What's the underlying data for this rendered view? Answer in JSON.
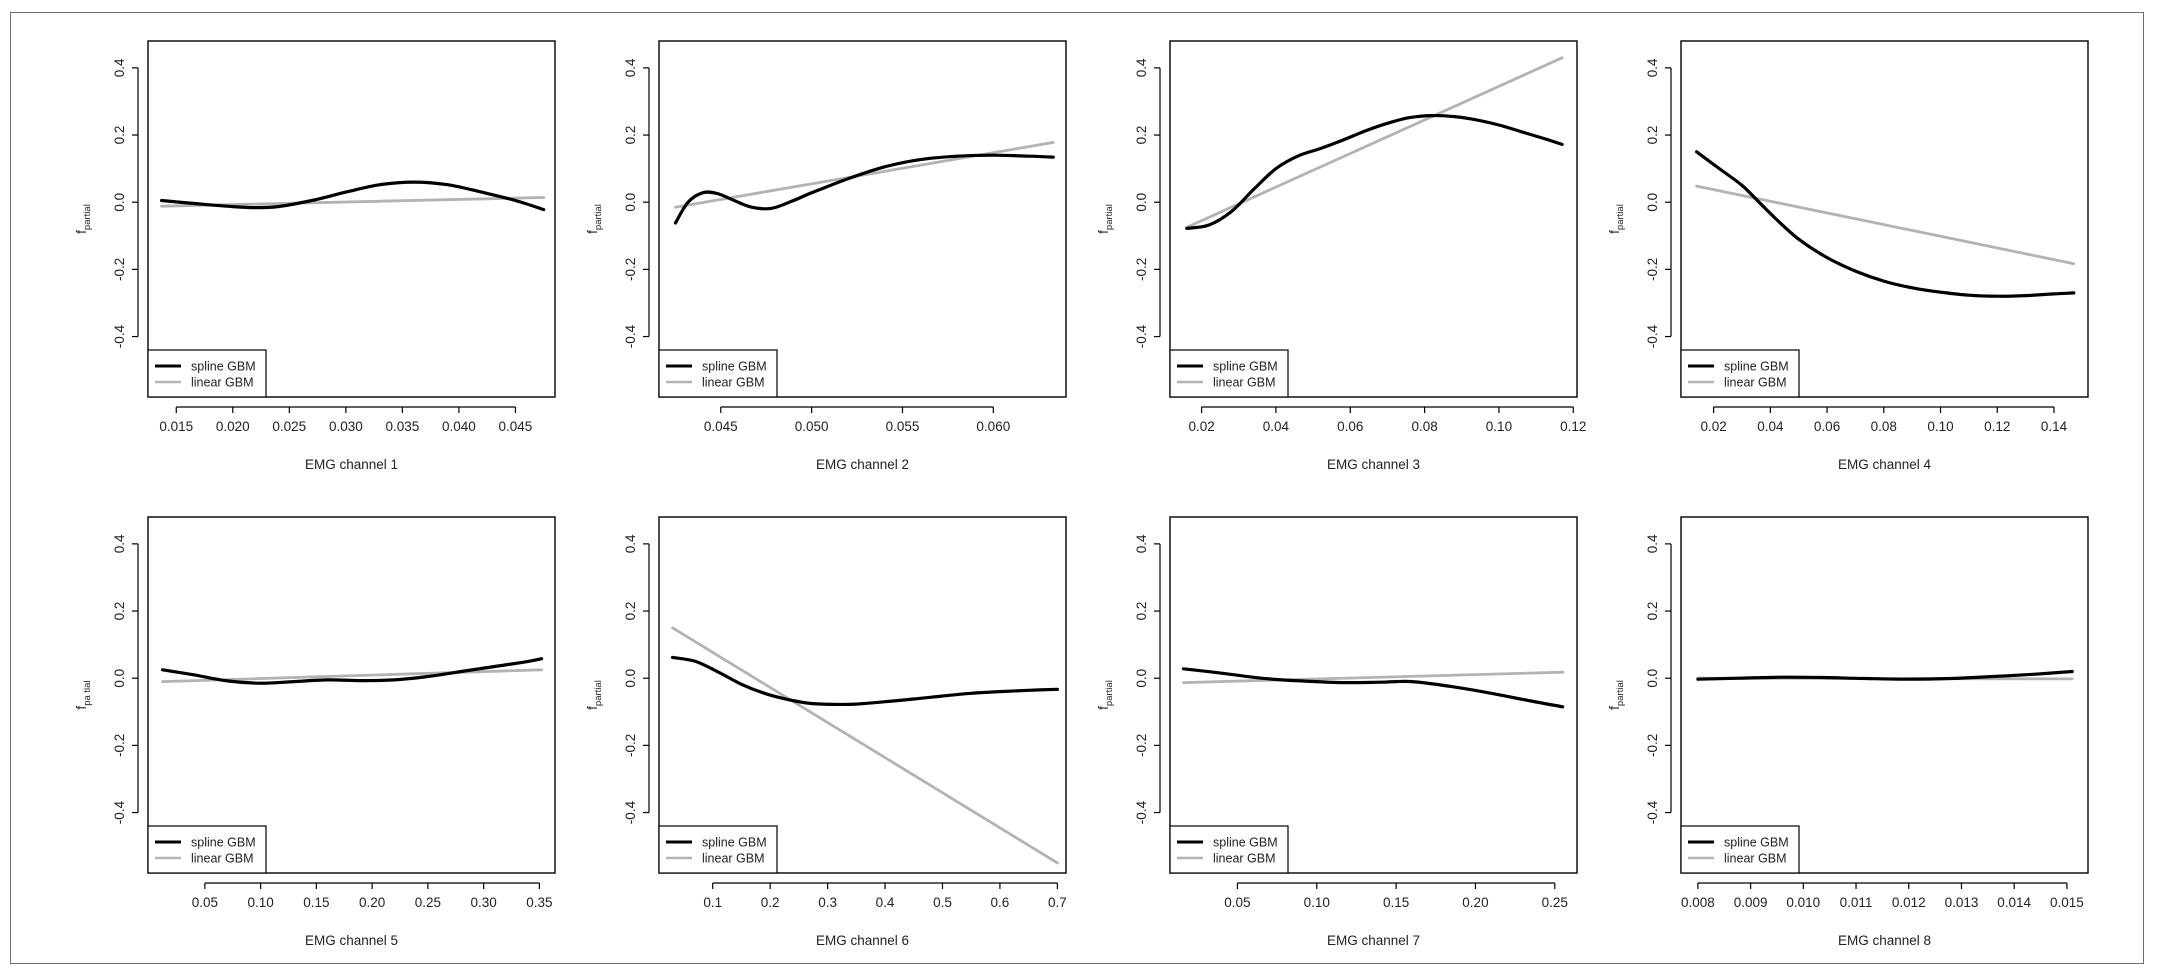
{
  "colors": {
    "spline": "#000000",
    "linear": "#b3b3b3",
    "frame": "#000000"
  },
  "chart_data": [
    {
      "type": "line",
      "xlabel": "EMG channel  1",
      "ylabel": "f",
      "ylabel_sub": "partial",
      "xlim": [
        0.0125,
        0.0485
      ],
      "ylim": [
        -0.58,
        0.48
      ],
      "x_ticks": [
        0.015,
        0.02,
        0.025,
        0.03,
        0.035,
        0.04,
        0.045
      ],
      "x_tick_labels": [
        "0.015",
        "0.020",
        "0.025",
        "0.030",
        "0.035",
        "0.040",
        "0.045"
      ],
      "y_ticks": [
        -0.4,
        -0.2,
        0.0,
        0.2,
        0.4
      ],
      "y_tick_labels": [
        "-0.4",
        "-0.2",
        "0.0",
        "0.2",
        "0.4"
      ],
      "legend": [
        "spline GBM",
        "linear GBM"
      ],
      "series": [
        {
          "name": "spline GBM",
          "x": [
            0.0137,
            0.017,
            0.02,
            0.022,
            0.024,
            0.027,
            0.03,
            0.033,
            0.036,
            0.039,
            0.042,
            0.045,
            0.0475
          ],
          "y": [
            0.005,
            -0.005,
            -0.013,
            -0.016,
            -0.013,
            0.005,
            0.03,
            0.052,
            0.06,
            0.052,
            0.03,
            0.005,
            -0.022
          ]
        },
        {
          "name": "linear GBM",
          "x": [
            0.0137,
            0.0475
          ],
          "y": [
            -0.012,
            0.014
          ]
        }
      ]
    },
    {
      "type": "line",
      "xlabel": "EMG channel  2",
      "ylabel": "f",
      "ylabel_sub": "partial",
      "xlim": [
        0.0416,
        0.064
      ],
      "ylim": [
        -0.58,
        0.48
      ],
      "x_ticks": [
        0.045,
        0.05,
        0.055,
        0.06
      ],
      "x_tick_labels": [
        "0.045",
        "0.050",
        "0.055",
        "0.060"
      ],
      "y_ticks": [
        -0.4,
        -0.2,
        0.0,
        0.2,
        0.4
      ],
      "y_tick_labels": [
        "-0.4",
        "-0.2",
        "0.0",
        "0.2",
        "0.4"
      ],
      "legend": [
        "spline GBM",
        "linear GBM"
      ],
      "series": [
        {
          "name": "spline GBM",
          "x": [
            0.0425,
            0.0432,
            0.044,
            0.0448,
            0.0457,
            0.0467,
            0.0478,
            0.049,
            0.05,
            0.052,
            0.054,
            0.056,
            0.058,
            0.06,
            0.062,
            0.0633
          ],
          "y": [
            -0.062,
            0.0,
            0.028,
            0.026,
            0.006,
            -0.015,
            -0.018,
            0.005,
            0.028,
            0.07,
            0.105,
            0.127,
            0.137,
            0.14,
            0.137,
            0.134
          ]
        },
        {
          "name": "linear GBM",
          "x": [
            0.0425,
            0.0633
          ],
          "y": [
            -0.015,
            0.178
          ]
        }
      ]
    },
    {
      "type": "line",
      "xlabel": "EMG channel  3",
      "ylabel": "f",
      "ylabel_sub": "partial",
      "xlim": [
        0.0115,
        0.121
      ],
      "ylim": [
        -0.58,
        0.48
      ],
      "x_ticks": [
        0.02,
        0.04,
        0.06,
        0.08,
        0.1,
        0.12
      ],
      "x_tick_labels": [
        "0.02",
        "0.04",
        "0.06",
        "0.08",
        "0.10",
        "0.12"
      ],
      "y_ticks": [
        -0.4,
        -0.2,
        0.0,
        0.2,
        0.4
      ],
      "y_tick_labels": [
        "-0.4",
        "-0.2",
        "0.0",
        "0.2",
        "0.4"
      ],
      "legend": [
        "spline GBM",
        "linear GBM"
      ],
      "series": [
        {
          "name": "spline GBM",
          "x": [
            0.016,
            0.022,
            0.028,
            0.034,
            0.04,
            0.046,
            0.052,
            0.058,
            0.064,
            0.07,
            0.076,
            0.082,
            0.088,
            0.094,
            0.1,
            0.106,
            0.112,
            0.117
          ],
          "y": [
            -0.078,
            -0.068,
            -0.028,
            0.038,
            0.1,
            0.138,
            0.16,
            0.185,
            0.212,
            0.235,
            0.252,
            0.258,
            0.255,
            0.245,
            0.23,
            0.21,
            0.19,
            0.172
          ]
        },
        {
          "name": "linear GBM",
          "x": [
            0.016,
            0.117
          ],
          "y": [
            -0.075,
            0.43
          ]
        }
      ]
    },
    {
      "type": "line",
      "xlabel": "EMG channel  4",
      "ylabel": "f",
      "ylabel_sub": "partial",
      "xlim": [
        0.0085,
        0.152
      ],
      "ylim": [
        -0.58,
        0.48
      ],
      "x_ticks": [
        0.02,
        0.04,
        0.06,
        0.08,
        0.1,
        0.12,
        0.14
      ],
      "x_tick_labels": [
        "0.02",
        "0.04",
        "0.06",
        "0.08",
        "0.10",
        "0.12",
        "0.14"
      ],
      "y_ticks": [
        -0.4,
        -0.2,
        0.0,
        0.2,
        0.4
      ],
      "y_tick_labels": [
        "-0.4",
        "-0.2",
        "0.0",
        "0.2",
        "0.4"
      ],
      "legend": [
        "spline GBM",
        "linear GBM"
      ],
      "series": [
        {
          "name": "spline GBM",
          "x": [
            0.014,
            0.022,
            0.03,
            0.036,
            0.042,
            0.05,
            0.06,
            0.07,
            0.08,
            0.09,
            0.1,
            0.11,
            0.12,
            0.13,
            0.14,
            0.147
          ],
          "y": [
            0.15,
            0.1,
            0.05,
            0.0,
            -0.05,
            -0.11,
            -0.165,
            -0.205,
            -0.235,
            -0.255,
            -0.268,
            -0.277,
            -0.28,
            -0.278,
            -0.273,
            -0.27
          ]
        },
        {
          "name": "linear GBM",
          "x": [
            0.014,
            0.147
          ],
          "y": [
            0.048,
            -0.183
          ]
        }
      ]
    },
    {
      "type": "line",
      "xlabel": "EMG channel  5",
      "ylabel": "f",
      "ylabel_sub": "pa tial",
      "xlim": [
        -0.001,
        0.364
      ],
      "ylim": [
        -0.58,
        0.48
      ],
      "x_ticks": [
        0.05,
        0.1,
        0.15,
        0.2,
        0.25,
        0.3,
        0.35
      ],
      "x_tick_labels": [
        "0.05",
        "0.10",
        "0.15",
        "0.20",
        "0.25",
        "0.30",
        "0.35"
      ],
      "y_ticks": [
        -0.4,
        -0.2,
        0.0,
        0.2,
        0.4
      ],
      "y_tick_labels": [
        "-0.4",
        "-0.2",
        "0.0",
        "0.2",
        "0.4"
      ],
      "legend": [
        "spline GBM",
        "linear GBM"
      ],
      "series": [
        {
          "name": "spline GBM",
          "x": [
            0.012,
            0.04,
            0.07,
            0.1,
            0.13,
            0.16,
            0.19,
            0.22,
            0.25,
            0.28,
            0.31,
            0.34,
            0.352
          ],
          "y": [
            0.025,
            0.01,
            -0.008,
            -0.015,
            -0.01,
            -0.005,
            -0.007,
            -0.005,
            0.005,
            0.02,
            0.035,
            0.05,
            0.058
          ]
        },
        {
          "name": "linear GBM",
          "x": [
            0.012,
            0.352
          ],
          "y": [
            -0.01,
            0.025
          ]
        }
      ]
    },
    {
      "type": "line",
      "xlabel": "EMG channel  6",
      "ylabel": "f",
      "ylabel_sub": "partial",
      "xlim": [
        0.0065,
        0.715
      ],
      "ylim": [
        -0.58,
        0.48
      ],
      "x_ticks": [
        0.1,
        0.2,
        0.3,
        0.4,
        0.5,
        0.6,
        0.7
      ],
      "x_tick_labels": [
        "0.1",
        "0.2",
        "0.3",
        "0.4",
        "0.5",
        "0.6",
        "0.7"
      ],
      "y_ticks": [
        -0.4,
        -0.2,
        0.0,
        0.2,
        0.4
      ],
      "y_tick_labels": [
        "-0.4",
        "-0.2",
        "0.0",
        "0.2",
        "0.4"
      ],
      "legend": [
        "spline GBM",
        "linear GBM"
      ],
      "series": [
        {
          "name": "spline GBM",
          "x": [
            0.03,
            0.07,
            0.11,
            0.15,
            0.19,
            0.23,
            0.27,
            0.31,
            0.35,
            0.4,
            0.45,
            0.5,
            0.55,
            0.6,
            0.65,
            0.7
          ],
          "y": [
            0.062,
            0.05,
            0.018,
            -0.018,
            -0.045,
            -0.063,
            -0.075,
            -0.078,
            -0.077,
            -0.07,
            -0.062,
            -0.053,
            -0.045,
            -0.04,
            -0.036,
            -0.033
          ]
        },
        {
          "name": "linear GBM",
          "x": [
            0.03,
            0.7
          ],
          "y": [
            0.15,
            -0.55
          ]
        }
      ]
    },
    {
      "type": "line",
      "xlabel": "EMG channel  7",
      "ylabel": "f",
      "ylabel_sub": "partial",
      "xlim": [
        0.0075,
        0.264
      ],
      "ylim": [
        -0.58,
        0.48
      ],
      "x_ticks": [
        0.05,
        0.1,
        0.15,
        0.2,
        0.25
      ],
      "x_tick_labels": [
        "0.05",
        "0.10",
        "0.15",
        "0.20",
        "0.25"
      ],
      "y_ticks": [
        -0.4,
        -0.2,
        0.0,
        0.2,
        0.4
      ],
      "y_tick_labels": [
        "-0.4",
        "-0.2",
        "0.0",
        "0.2",
        "0.4"
      ],
      "legend": [
        "spline GBM",
        "linear GBM"
      ],
      "series": [
        {
          "name": "spline GBM",
          "x": [
            0.016,
            0.04,
            0.065,
            0.09,
            0.115,
            0.14,
            0.16,
            0.185,
            0.21,
            0.235,
            0.255
          ],
          "y": [
            0.028,
            0.015,
            0.0,
            -0.008,
            -0.013,
            -0.012,
            -0.01,
            -0.025,
            -0.045,
            -0.068,
            -0.085
          ]
        },
        {
          "name": "linear GBM",
          "x": [
            0.016,
            0.255
          ],
          "y": [
            -0.013,
            0.018
          ]
        }
      ]
    },
    {
      "type": "line",
      "xlabel": "EMG channel  8",
      "ylabel": "f",
      "ylabel_sub": "partial",
      "xlim": [
        0.00768,
        0.0154
      ],
      "ylim": [
        -0.58,
        0.48
      ],
      "x_ticks": [
        0.008,
        0.009,
        0.01,
        0.011,
        0.012,
        0.013,
        0.014,
        0.015
      ],
      "x_tick_labels": [
        "0.008",
        "0.009",
        "0.010",
        "0.011",
        "0.012",
        "0.013",
        "0.014",
        "0.015"
      ],
      "y_ticks": [
        -0.4,
        -0.2,
        0.0,
        0.2,
        0.4
      ],
      "y_tick_labels": [
        "-0.4",
        "-0.2",
        "0.0",
        "0.2",
        "0.4"
      ],
      "legend": [
        "spline GBM",
        "linear GBM"
      ],
      "series": [
        {
          "name": "spline GBM",
          "x": [
            0.008,
            0.0088,
            0.0096,
            0.0104,
            0.0112,
            0.012,
            0.0128,
            0.0136,
            0.0144,
            0.0151
          ],
          "y": [
            -0.003,
            0.0,
            0.003,
            0.002,
            -0.001,
            -0.003,
            -0.001,
            0.005,
            0.012,
            0.02
          ]
        },
        {
          "name": "linear GBM",
          "x": [
            0.008,
            0.0151
          ],
          "y": [
            0.0,
            -0.002
          ]
        }
      ]
    }
  ]
}
